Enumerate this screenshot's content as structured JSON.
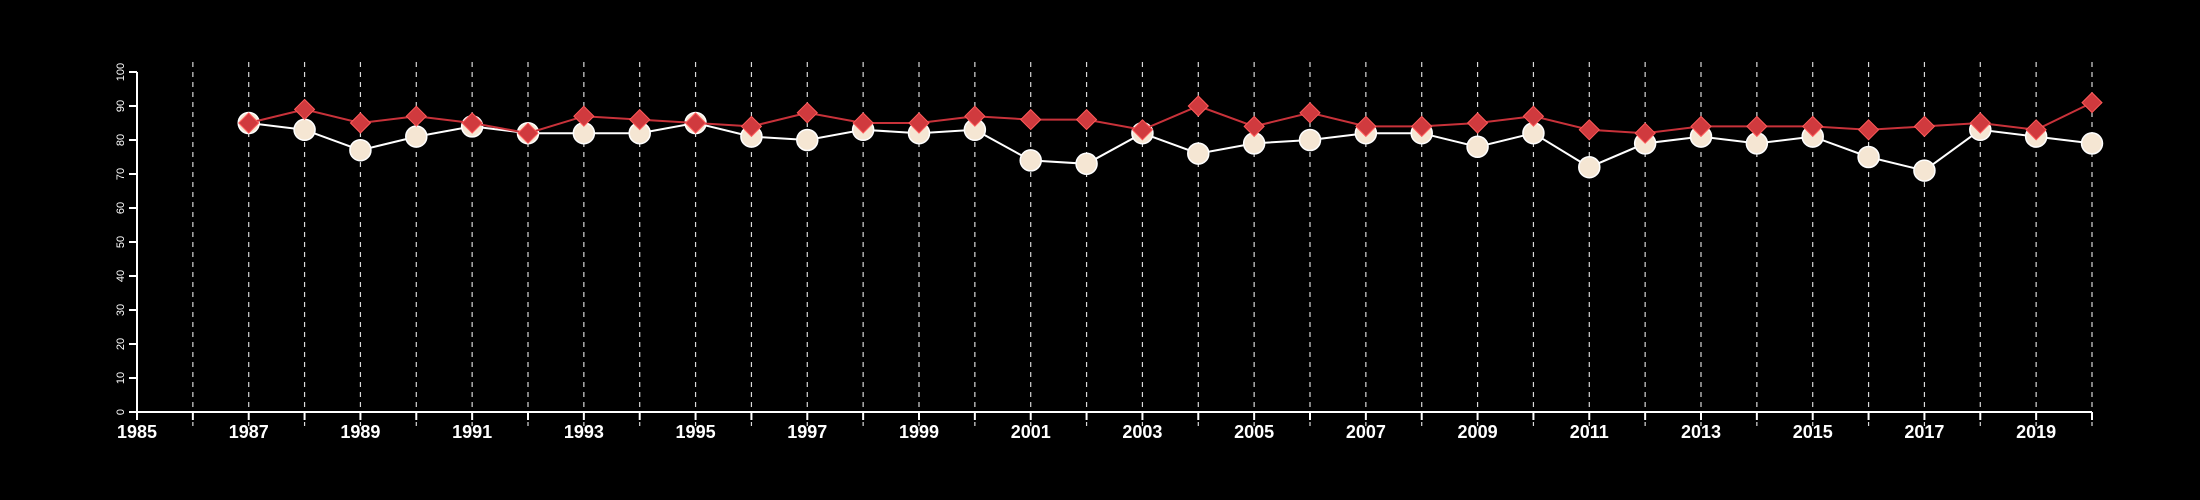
{
  "chart_data": {
    "type": "line",
    "title": "",
    "xlabel": "",
    "ylabel": "",
    "xlim": [
      1985,
      2020
    ],
    "ylim": [
      0,
      100
    ],
    "x_ticks": [
      1985,
      1987,
      1989,
      1991,
      1993,
      1995,
      1997,
      1999,
      2001,
      2003,
      2005,
      2007,
      2009,
      2011,
      2013,
      2015,
      2017,
      2019
    ],
    "y_ticks": [
      0,
      10,
      20,
      30,
      40,
      50,
      60,
      70,
      80,
      90,
      100
    ],
    "vertical_grid": "dashed, every year",
    "legend": "none",
    "x": [
      1987,
      1988,
      1989,
      1990,
      1991,
      1992,
      1993,
      1994,
      1995,
      1996,
      1997,
      1998,
      1999,
      2000,
      2001,
      2002,
      2003,
      2004,
      2005,
      2006,
      2007,
      2008,
      2009,
      2010,
      2011,
      2012,
      2013,
      2014,
      2015,
      2016,
      2017,
      2018,
      2019,
      2020
    ],
    "series": [
      {
        "marker": "circle",
        "line_color": "#ffffff",
        "marker_color": "#f5e6d3",
        "values": [
          85,
          83,
          77,
          81,
          84,
          82,
          82,
          82,
          85,
          81,
          80,
          83,
          82,
          83,
          74,
          73,
          82,
          76,
          79,
          80,
          82,
          82,
          78,
          82,
          72,
          79,
          81,
          79,
          81,
          75,
          71,
          83,
          81,
          79
        ]
      },
      {
        "marker": "diamond",
        "line_color": "#c8323a",
        "marker_color": "#d03a3e",
        "values": [
          85,
          89,
          85,
          87,
          85,
          82,
          87,
          86,
          85,
          84,
          88,
          85,
          85,
          87,
          86,
          86,
          83,
          90,
          84,
          88,
          84,
          84,
          85,
          87,
          83,
          82,
          84,
          84,
          84,
          83,
          84,
          85,
          83,
          91
        ]
      }
    ]
  }
}
